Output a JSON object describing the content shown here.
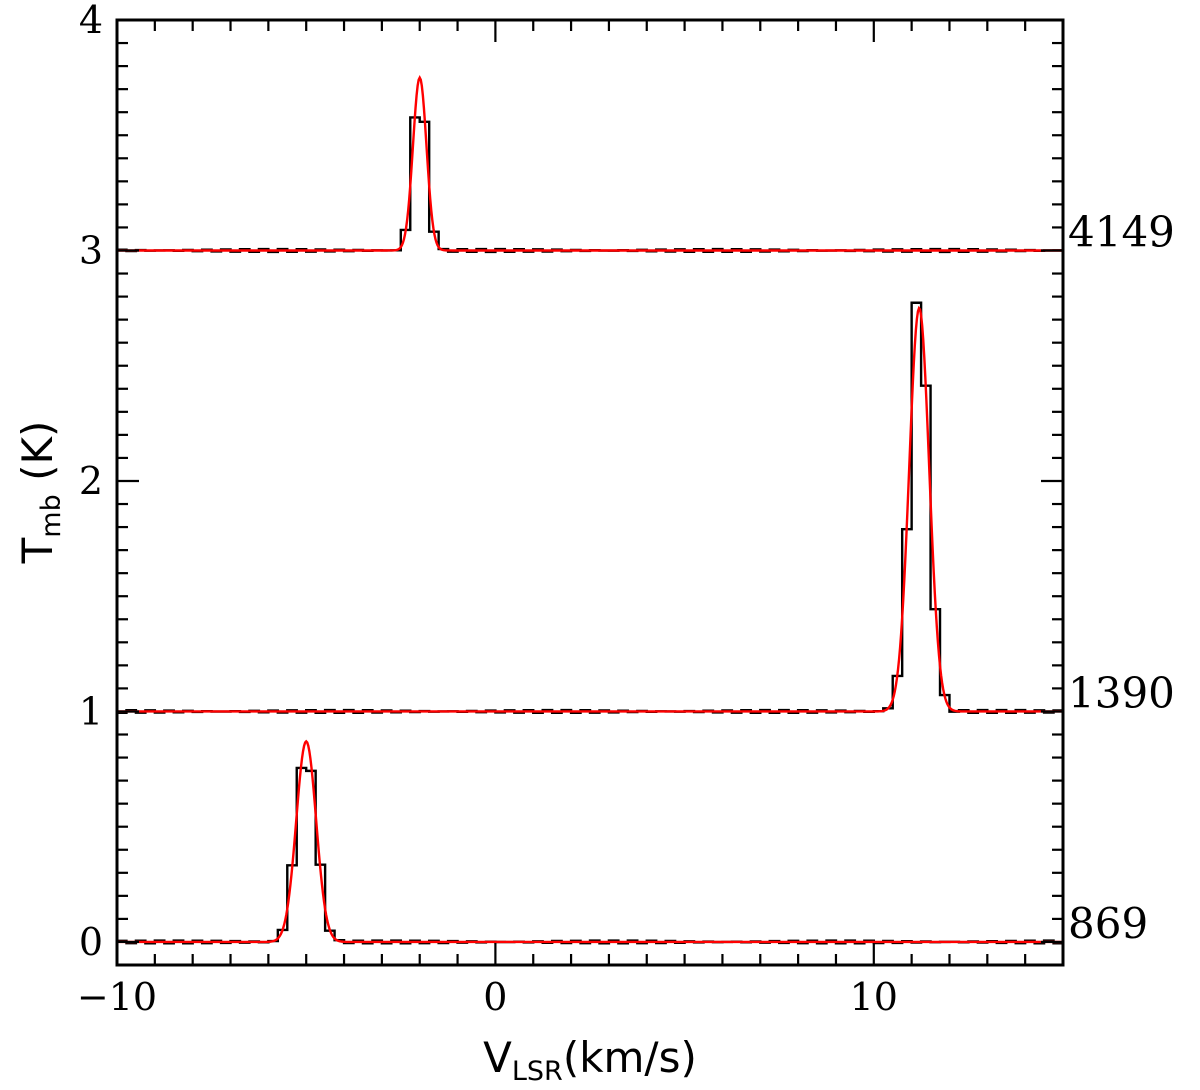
{
  "chart_data": {
    "type": "line",
    "title": "",
    "xlabel": {
      "main": "V",
      "sub": "LSR",
      "rest": "(km/s)"
    },
    "ylabel": {
      "main": "T",
      "sub": "mb",
      "rest": " (K)"
    },
    "xlim": [
      -10,
      15
    ],
    "ylim": [
      -0.1,
      4
    ],
    "x_ticks": [
      {
        "value": -10,
        "label": "−10"
      },
      {
        "value": 0,
        "label": "0"
      },
      {
        "value": 10,
        "label": "10"
      }
    ],
    "y_ticks": [
      {
        "value": 0,
        "label": "0"
      },
      {
        "value": 1,
        "label": "1"
      },
      {
        "value": 2,
        "label": "2"
      },
      {
        "value": 3,
        "label": "3"
      },
      {
        "value": 4,
        "label": "4"
      }
    ],
    "x_minor_step": 1,
    "y_minor_step": 0.1,
    "grid": false,
    "channel_width": 0.25,
    "colors": {
      "observed": "#000000",
      "fit": "#ff0000"
    },
    "series": [
      {
        "label": "4149",
        "baseline": 3,
        "peak_velocity": -2.0,
        "peak_height": 0.75,
        "fwhm": 0.42
      },
      {
        "label": "1390",
        "baseline": 1,
        "peak_velocity": 11.2,
        "peak_height": 1.75,
        "fwhm": 0.62
      },
      {
        "label": "869",
        "baseline": 0,
        "peak_velocity": -5.0,
        "peak_height": 0.87,
        "fwhm": 0.62
      }
    ]
  }
}
